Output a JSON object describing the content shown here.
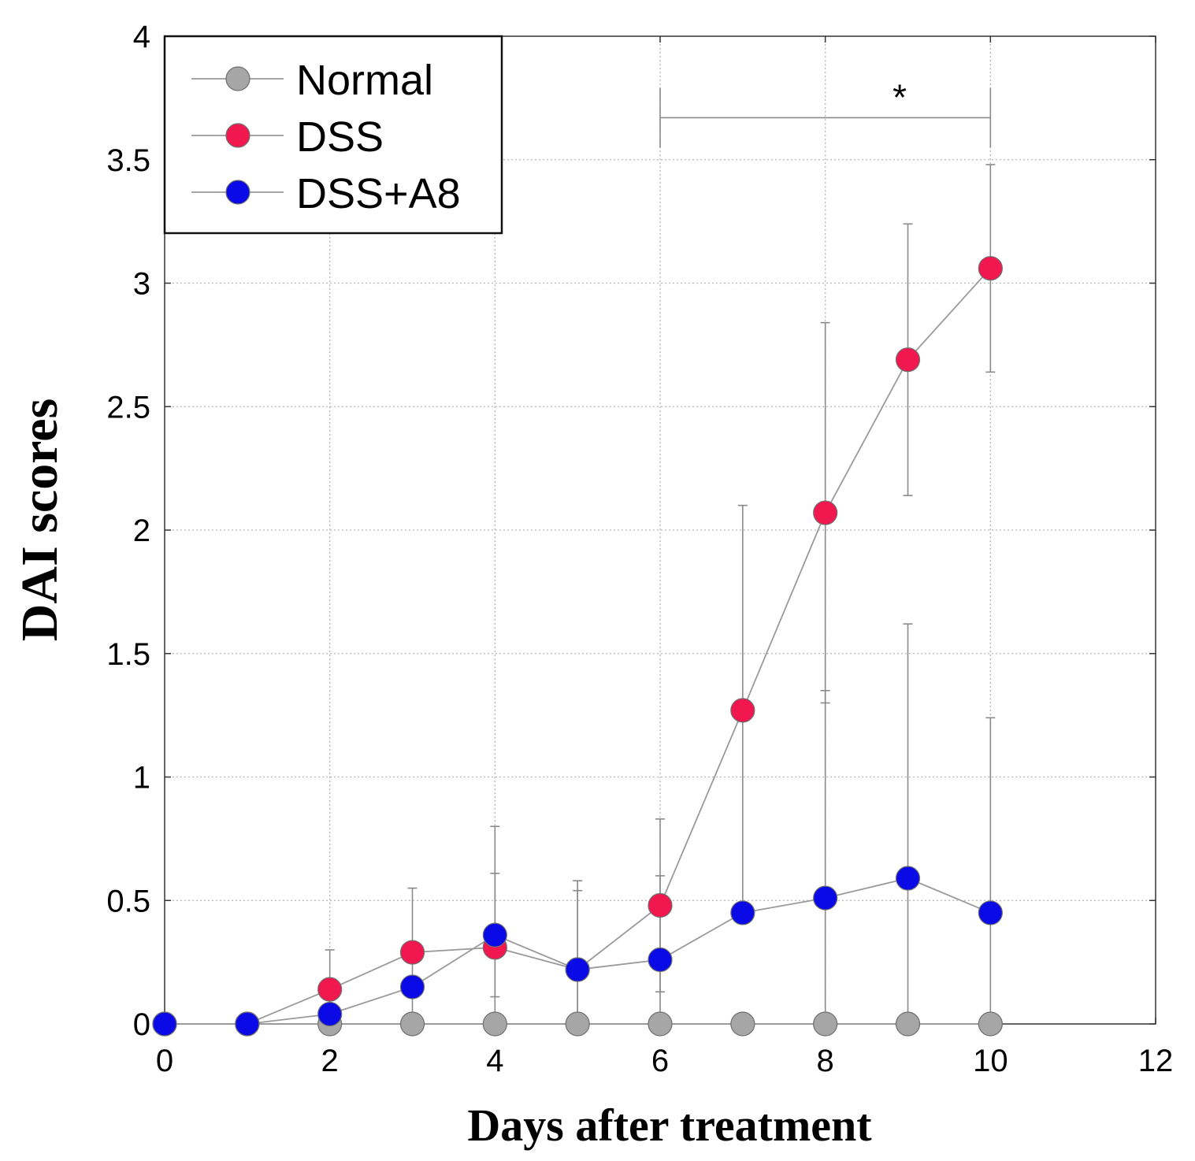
{
  "chart_data": {
    "type": "line",
    "title": "",
    "xlabel": "Days after treatment",
    "ylabel": "DAI scores",
    "xlim": [
      0,
      12
    ],
    "ylim": [
      0,
      4
    ],
    "xticks": [
      0,
      2,
      4,
      6,
      8,
      10,
      12
    ],
    "xtick_labels": [
      "0",
      "2",
      "4",
      "6",
      "8",
      "10",
      "12"
    ],
    "yticks": [
      0,
      0.5,
      1,
      1.5,
      2,
      2.5,
      3,
      3.5,
      4
    ],
    "ytick_labels": [
      "0",
      "0.5",
      "1",
      "1.5",
      "2",
      "2.5",
      "3",
      "3.5",
      "4"
    ],
    "grid": true,
    "legend_position": "top-left",
    "series": [
      {
        "name": "Normal",
        "color": "#a6a6a6",
        "x": [
          0,
          1,
          2,
          3,
          4,
          5,
          6,
          7,
          8,
          9,
          10
        ],
        "y": [
          0,
          0,
          0,
          0,
          0,
          0,
          0,
          0,
          0,
          0,
          0
        ],
        "err": []
      },
      {
        "name": "DSS",
        "color": "#f0184e",
        "x": [
          0,
          1,
          2,
          3,
          4,
          5,
          6,
          7,
          8,
          9,
          10
        ],
        "y": [
          0,
          0,
          0.14,
          0.29,
          0.31,
          0.22,
          0.48,
          1.27,
          2.07,
          2.69,
          3.06
        ],
        "err": [
          0,
          0,
          0.16,
          0.26,
          0.49,
          0.36,
          0.35,
          0.83,
          0.77,
          0.55,
          0.42
        ]
      },
      {
        "name": "DSS+A8",
        "color": "#0a0ae6",
        "x": [
          0,
          1,
          2,
          3,
          4,
          5,
          6,
          7,
          8,
          9,
          10
        ],
        "y": [
          0,
          0,
          0.04,
          0.15,
          0.36,
          0.22,
          0.26,
          0.45,
          0.51,
          0.59,
          0.45
        ],
        "err": [
          0,
          0,
          0,
          0,
          0.25,
          0.32,
          0.34,
          0,
          0.84,
          1.03,
          0.79
        ]
      }
    ],
    "annotations": [
      {
        "text": "*",
        "type": "significance_bracket",
        "x_start": 6,
        "x_end": 10,
        "y": 3.67
      }
    ]
  }
}
